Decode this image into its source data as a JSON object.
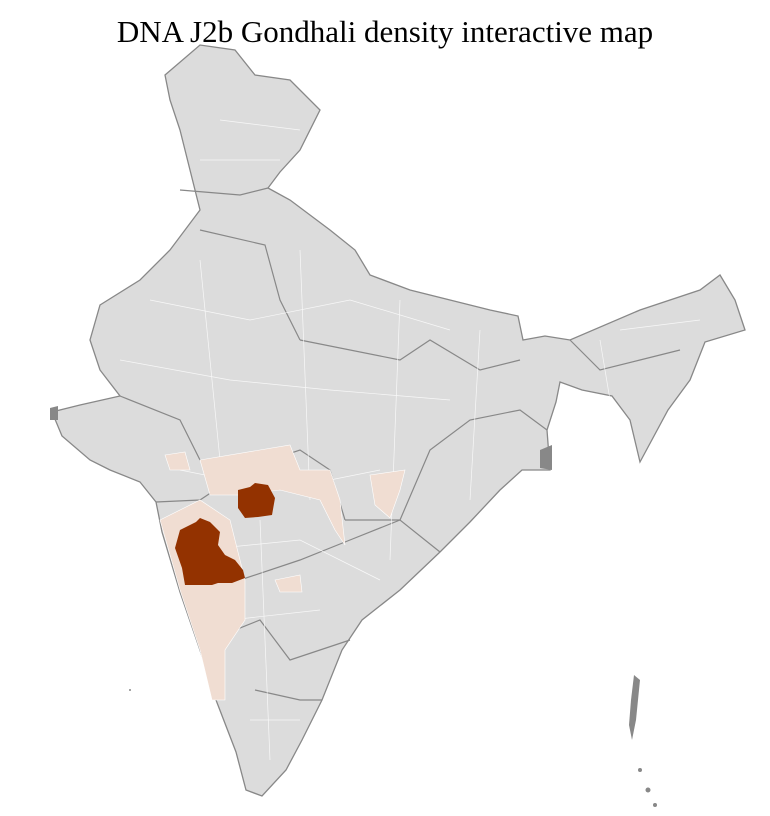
{
  "title": "DNA J2b Gondhali density interactive map",
  "colors": {
    "no_data": "#dcdcdc",
    "district_border": "#ffffff",
    "state_border": "#888888",
    "low_density": "#f0ddd2",
    "high_density": "#933200"
  }
}
